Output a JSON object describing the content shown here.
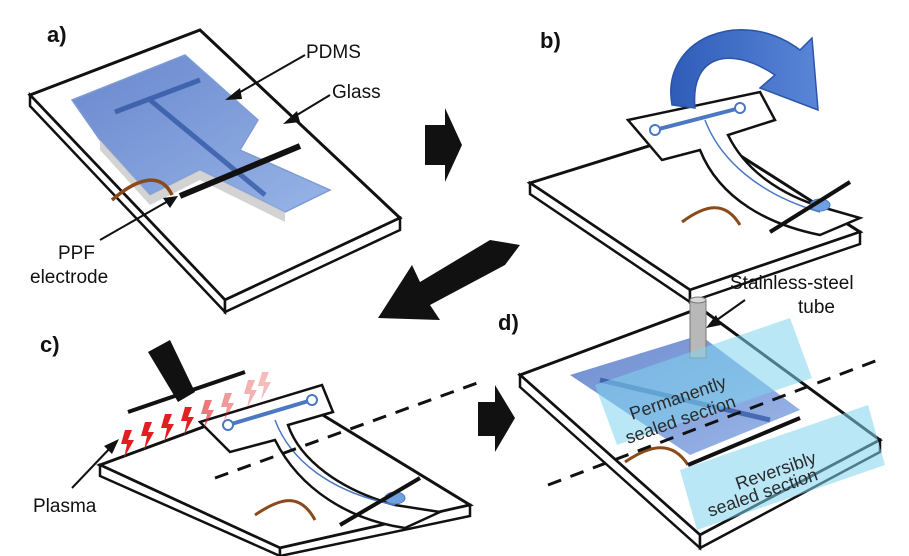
{
  "panels": {
    "a": {
      "label": "a)",
      "pdms": "PDMS",
      "glass": "Glass",
      "electrode_line1": "PPF",
      "electrode_line2": "electrode"
    },
    "b": {
      "label": "b)"
    },
    "c": {
      "label": "c)",
      "plasma": "Plasma"
    },
    "d": {
      "label": "d)",
      "tube_line1": "Stainless-steel",
      "tube_line2": "tube",
      "perm_line1": "Permanently",
      "perm_line2": "sealed section",
      "rev_line1": "Reversibly",
      "rev_line2": "sealed section"
    }
  },
  "colors": {
    "pdms_blue": "#5b7fc9",
    "channel_blue": "#4a78c2",
    "electrode_brown": "#8a4a1a",
    "plasma_red": "#e02020",
    "seal_cyan": "#7fd3ee",
    "flip_arrow": "#3a66c4"
  },
  "icons": [
    "flip-arrow-icon",
    "step-arrow-icon",
    "plasma-spark-icon"
  ]
}
